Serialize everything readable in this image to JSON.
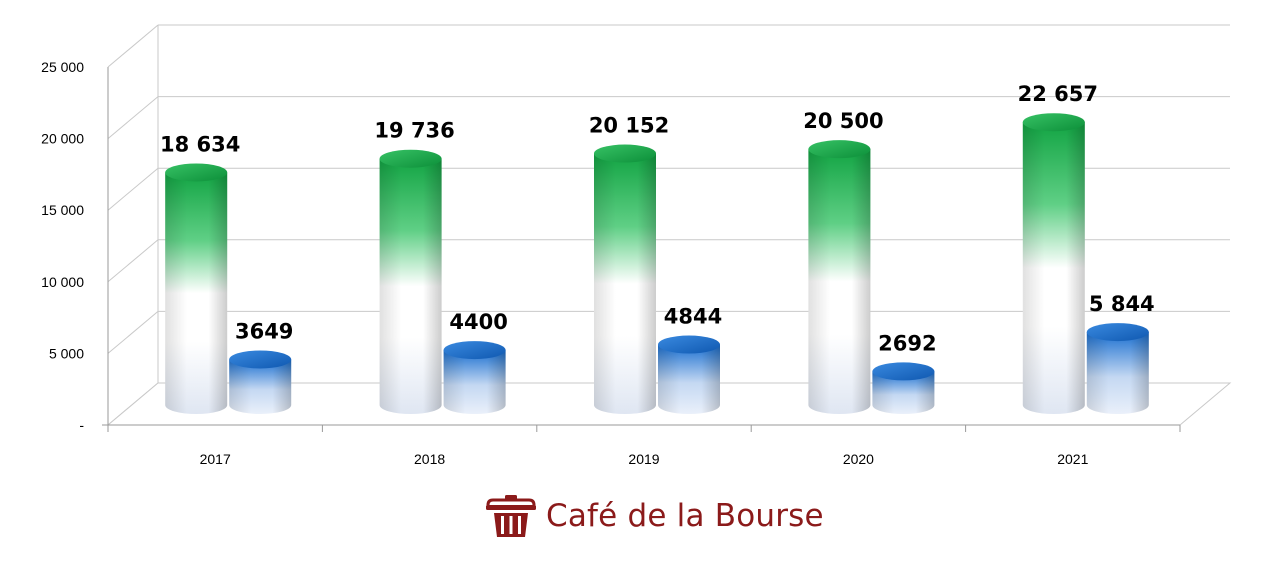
{
  "chart_data": {
    "type": "bar",
    "style": "3d-cylinder",
    "categories": [
      "2017",
      "2018",
      "2019",
      "2020",
      "2021"
    ],
    "series": [
      {
        "color": "#1aa64a",
        "values": [
          18634,
          19736,
          20152,
          20500,
          22657
        ],
        "labels": [
          "18 634",
          "19 736",
          "20 152",
          "20 500",
          "22 657"
        ]
      },
      {
        "color": "#1a6fd0",
        "values": [
          3649,
          4400,
          4844,
          2692,
          5844
        ],
        "labels": [
          "3649",
          "4400",
          "4844",
          "2692",
          "5 844"
        ]
      }
    ],
    "yticks": [
      "-",
      "5 000",
      "10 000",
      "15 000",
      "20 000",
      "25 000"
    ],
    "ytick_values": [
      0,
      5000,
      10000,
      15000,
      20000,
      25000
    ],
    "ylim": [
      0,
      25000
    ],
    "grid": true,
    "legend": "none"
  },
  "branding": {
    "text": "Café de la Bourse",
    "icon": "bin-icon",
    "color": "#8b1a1a"
  }
}
